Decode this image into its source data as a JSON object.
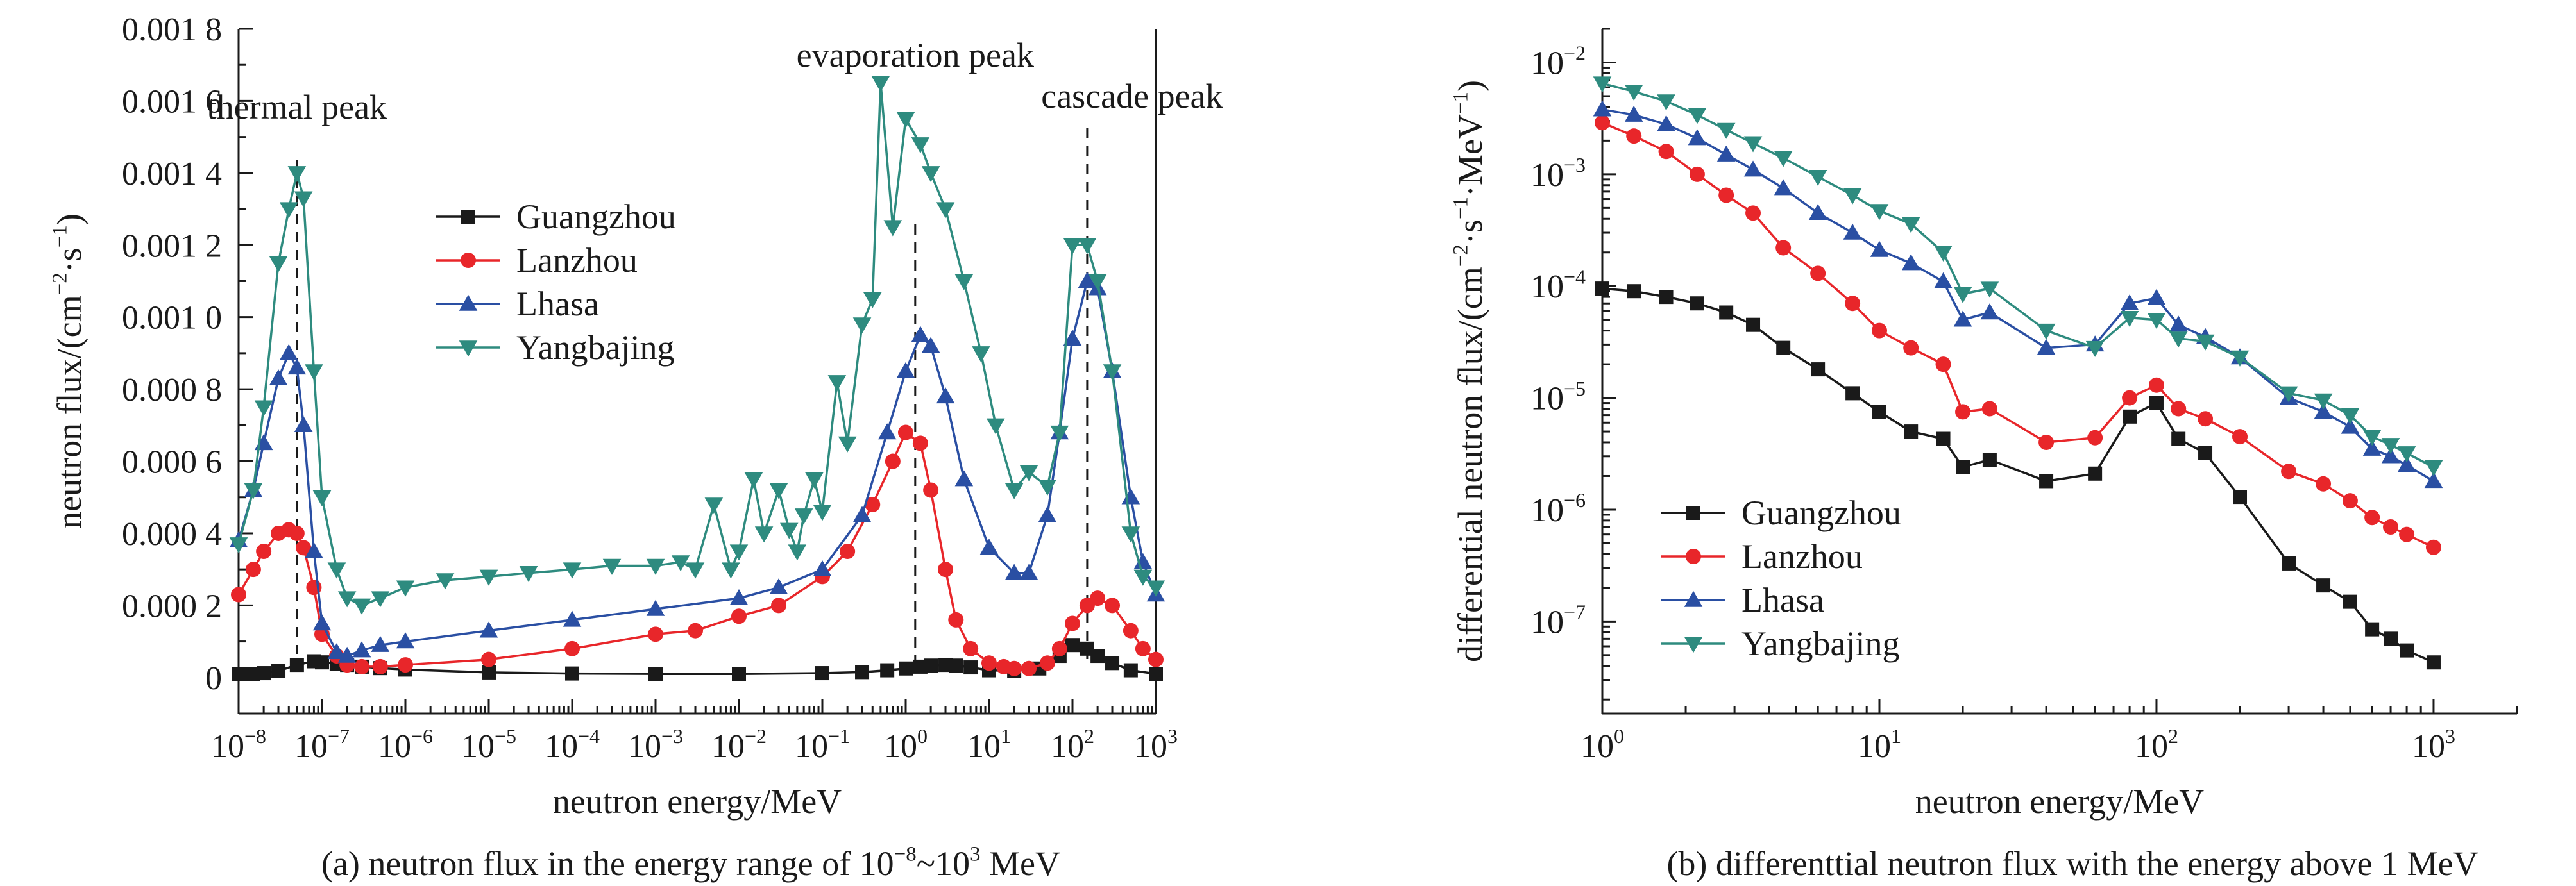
{
  "chart_data": [
    {
      "id": "a",
      "type": "line",
      "caption": {
        "prefix": "(a) neutron flux in the energy range of 10",
        "sup1": "−8",
        "mid": "~10",
        "sup2": "3",
        "suffix": " MeV"
      },
      "xlabel": "neutron energy/MeV",
      "ylabel": {
        "main": "neutron flux/(cm",
        "sup1": "−2",
        "mid": "·s",
        "sup2": "−1",
        "end": ")"
      },
      "xscale": "log",
      "xlim": [
        1e-08,
        1000
      ],
      "ylim": [
        -0.0001,
        0.0018
      ],
      "y_ticks": [
        {
          "value": 0,
          "label": "0"
        },
        {
          "value": 0.0002,
          "label": "0.000 2"
        },
        {
          "value": 0.0004,
          "label": "0.000 4"
        },
        {
          "value": 0.0006,
          "label": "0.000 6"
        },
        {
          "value": 0.0008,
          "label": "0.000 8"
        },
        {
          "value": 0.001,
          "label": "0.001 0"
        },
        {
          "value": 0.0012,
          "label": "0.001 2"
        },
        {
          "value": 0.0014,
          "label": "0.001 4"
        },
        {
          "value": 0.0016,
          "label": "0.001 6"
        },
        {
          "value": 0.0018,
          "label": "0.001 8"
        }
      ],
      "x_ticks": [
        {
          "value": 1e-08,
          "base": "10",
          "exp": "−8"
        },
        {
          "value": 1e-07,
          "base": "10",
          "exp": "−7"
        },
        {
          "value": 1e-06,
          "base": "10",
          "exp": "−6"
        },
        {
          "value": 1e-05,
          "base": "10",
          "exp": "−5"
        },
        {
          "value": 0.0001,
          "base": "10",
          "exp": "−4"
        },
        {
          "value": 0.001,
          "base": "10",
          "exp": "−3"
        },
        {
          "value": 0.01,
          "base": "10",
          "exp": "−2"
        },
        {
          "value": 0.1,
          "base": "10",
          "exp": "−1"
        },
        {
          "value": 1,
          "base": "10",
          "exp": "0"
        },
        {
          "value": 10,
          "base": "10",
          "exp": "1"
        },
        {
          "value": 100,
          "base": "10",
          "exp": "2"
        },
        {
          "value": 1000,
          "base": "10",
          "exp": "3"
        }
      ],
      "annotations": [
        {
          "text": "thermal peak",
          "x": 5e-08
        },
        {
          "text": "evaporation peak",
          "x": 1.3
        },
        {
          "text": "cascade peak",
          "x": 150
        }
      ],
      "legend": "upper-left",
      "series": [
        {
          "name": "Guangzhou",
          "color": "#1a1a1a",
          "marker": "square",
          "x": [
            1e-08,
            1.5e-08,
            2e-08,
            3e-08,
            5e-08,
            8e-08,
            1e-07,
            1.5e-07,
            2e-07,
            3e-07,
            5e-07,
            1e-06,
            1e-05,
            0.0001,
            0.001,
            0.01,
            0.1,
            0.3,
            0.6,
            1,
            1.5,
            2,
            3,
            4,
            6,
            10,
            20,
            40,
            70,
            100,
            150,
            200,
            300,
            500,
            1000
          ],
          "y": [
            1e-05,
            1e-05,
            1.2e-05,
            1.8e-05,
            3.5e-05,
            4.5e-05,
            4.2e-05,
            3.8e-05,
            3.5e-05,
            3e-05,
            2.6e-05,
            2.2e-05,
            1.4e-05,
            1.1e-05,
            1e-05,
            1e-05,
            1.2e-05,
            1.5e-05,
            2e-05,
            2.5e-05,
            3e-05,
            3.3e-05,
            3.5e-05,
            3.3e-05,
            2.8e-05,
            2e-05,
            1.8e-05,
            2.5e-05,
            6e-05,
            9e-05,
            8e-05,
            6e-05,
            4e-05,
            2e-05,
            1e-05
          ]
        },
        {
          "name": "Lanzhou",
          "color": "#e8262a",
          "marker": "circle",
          "x": [
            1e-08,
            1.5e-08,
            2e-08,
            3e-08,
            4e-08,
            5e-08,
            6e-08,
            8e-08,
            1e-07,
            1.5e-07,
            2e-07,
            3e-07,
            5e-07,
            1e-06,
            1e-05,
            0.0001,
            0.001,
            0.003,
            0.01,
            0.03,
            0.1,
            0.2,
            0.4,
            0.7,
            1,
            1.5,
            2,
            3,
            4,
            6,
            10,
            15,
            20,
            30,
            50,
            70,
            100,
            150,
            200,
            300,
            500,
            700,
            1000
          ],
          "y": [
            0.00023,
            0.0003,
            0.00035,
            0.0004,
            0.00041,
            0.0004,
            0.00036,
            0.00025,
            0.00012,
            6e-05,
            3.5e-05,
            3e-05,
            3e-05,
            3.5e-05,
            5e-05,
            8e-05,
            0.00012,
            0.00013,
            0.00017,
            0.0002,
            0.00028,
            0.00035,
            0.00048,
            0.0006,
            0.00068,
            0.00065,
            0.00052,
            0.0003,
            0.00016,
            8e-05,
            4e-05,
            3e-05,
            2.5e-05,
            2.5e-05,
            4e-05,
            8e-05,
            0.00015,
            0.0002,
            0.00022,
            0.0002,
            0.00013,
            8e-05,
            5e-05
          ]
        },
        {
          "name": "Lhasa",
          "color": "#2a4fa3",
          "marker": "triangle-up",
          "x": [
            1e-08,
            1.5e-08,
            2e-08,
            3e-08,
            4e-08,
            5e-08,
            6e-08,
            8e-08,
            1e-07,
            1.5e-07,
            2e-07,
            3e-07,
            5e-07,
            1e-06,
            1e-05,
            0.0001,
            0.001,
            0.01,
            0.03,
            0.1,
            0.3,
            0.6,
            1,
            1.5,
            2,
            3,
            5,
            10,
            20,
            30,
            50,
            70,
            100,
            150,
            200,
            300,
            500,
            700,
            1000
          ],
          "y": [
            0.00038,
            0.00052,
            0.00065,
            0.00083,
            0.0009,
            0.00086,
            0.0007,
            0.00035,
            0.00015,
            7e-05,
            6e-05,
            7.5e-05,
            9e-05,
            0.0001,
            0.00013,
            0.00016,
            0.00019,
            0.00022,
            0.00025,
            0.0003,
            0.00045,
            0.00068,
            0.00085,
            0.00095,
            0.00092,
            0.00078,
            0.00055,
            0.00036,
            0.00029,
            0.00029,
            0.00045,
            0.00068,
            0.00094,
            0.0011,
            0.00108,
            0.00085,
            0.0005,
            0.00032,
            0.00023
          ]
        },
        {
          "name": "Yangbajing",
          "color": "#2e8b7f",
          "marker": "triangle-down",
          "x": [
            1e-08,
            1.5e-08,
            2e-08,
            3e-08,
            4e-08,
            5e-08,
            6e-08,
            8e-08,
            1e-07,
            1.5e-07,
            2e-07,
            3e-07,
            5e-07,
            1e-06,
            3e-06,
            1e-05,
            3e-05,
            0.0001,
            0.0003,
            0.001,
            0.002,
            0.003,
            0.005,
            0.008,
            0.01,
            0.015,
            0.02,
            0.03,
            0.04,
            0.05,
            0.06,
            0.08,
            0.1,
            0.15,
            0.2,
            0.3,
            0.4,
            0.5,
            0.7,
            1,
            1.5,
            2,
            3,
            5,
            8,
            12,
            20,
            30,
            50,
            70,
            100,
            150,
            200,
            300,
            500,
            700,
            1000
          ],
          "y": [
            0.00037,
            0.00052,
            0.00075,
            0.00115,
            0.0013,
            0.0014,
            0.00133,
            0.00085,
            0.0005,
            0.0003,
            0.00022,
            0.0002,
            0.00022,
            0.00025,
            0.00027,
            0.00028,
            0.00029,
            0.0003,
            0.00031,
            0.00031,
            0.00032,
            0.0003,
            0.00048,
            0.0003,
            0.00035,
            0.00055,
            0.0004,
            0.00052,
            0.00041,
            0.00035,
            0.00045,
            0.00055,
            0.00046,
            0.00082,
            0.00065,
            0.00098,
            0.00105,
            0.00165,
            0.00125,
            0.00155,
            0.00148,
            0.0014,
            0.0013,
            0.0011,
            0.0009,
            0.0007,
            0.00052,
            0.00057,
            0.00053,
            0.00068,
            0.0012,
            0.0012,
            0.0011,
            0.00085,
            0.0004,
            0.00028,
            0.00025
          ]
        }
      ]
    },
    {
      "id": "b",
      "type": "line",
      "caption": {
        "text": "(b) differenttial neutron flux with the energy above 1 MeV"
      },
      "xlabel": "neutron energy/MeV",
      "ylabel": {
        "main": "differential neutron flux/(cm",
        "sup1": "−2",
        "mid": "·s",
        "sup2": "−1",
        "mid2": "·MeV",
        "sup3": "−1",
        "end": ")"
      },
      "xscale": "log",
      "yscale": "log",
      "xlim": [
        1,
        2000
      ],
      "ylim": [
        1.5e-08,
        0.02
      ],
      "x_ticks": [
        {
          "value": 1,
          "base": "10",
          "exp": "0"
        },
        {
          "value": 10,
          "base": "10",
          "exp": "1"
        },
        {
          "value": 100,
          "base": "10",
          "exp": "2"
        },
        {
          "value": 1000,
          "base": "10",
          "exp": "3"
        }
      ],
      "y_ticks": [
        {
          "value": 1e-07,
          "base": "10",
          "exp": "−7"
        },
        {
          "value": 1e-06,
          "base": "10",
          "exp": "−6"
        },
        {
          "value": 1e-05,
          "base": "10",
          "exp": "−5"
        },
        {
          "value": 0.0001,
          "base": "10",
          "exp": "−4"
        },
        {
          "value": 0.001,
          "base": "10",
          "exp": "−3"
        },
        {
          "value": 0.01,
          "base": "10",
          "exp": "−2"
        }
      ],
      "legend": "lower-left",
      "series": [
        {
          "name": "Guangzhou",
          "color": "#1a1a1a",
          "marker": "square",
          "x": [
            1,
            1.3,
            1.7,
            2.2,
            2.8,
            3.5,
            4.5,
            6,
            8,
            10,
            13,
            17,
            20,
            25,
            40,
            60,
            80,
            100,
            120,
            150,
            200,
            300,
            400,
            500,
            600,
            700,
            800,
            1000
          ],
          "y": [
            9.5e-05,
            9e-05,
            8e-05,
            7e-05,
            5.8e-05,
            4.5e-05,
            2.8e-05,
            1.8e-05,
            1.1e-05,
            7.5e-06,
            5e-06,
            4.3e-06,
            2.4e-06,
            2.8e-06,
            1.8e-06,
            2.1e-06,
            6.8e-06,
            9e-06,
            4.3e-06,
            3.2e-06,
            1.3e-06,
            3.3e-07,
            2.1e-07,
            1.5e-07,
            8.5e-08,
            7e-08,
            5.5e-08,
            4.3e-08
          ]
        },
        {
          "name": "Lanzhou",
          "color": "#e8262a",
          "marker": "circle",
          "x": [
            1,
            1.3,
            1.7,
            2.2,
            2.8,
            3.5,
            4.5,
            6,
            8,
            10,
            13,
            17,
            20,
            25,
            40,
            60,
            80,
            100,
            120,
            150,
            200,
            300,
            400,
            500,
            600,
            700,
            800,
            1000
          ],
          "y": [
            0.0029,
            0.0022,
            0.0016,
            0.001,
            0.00065,
            0.00045,
            0.00022,
            0.00013,
            7e-05,
            4e-05,
            2.8e-05,
            2e-05,
            7.5e-06,
            8e-06,
            4e-06,
            4.4e-06,
            1e-05,
            1.3e-05,
            8e-06,
            6.5e-06,
            4.5e-06,
            2.2e-06,
            1.7e-06,
            1.2e-06,
            8.5e-07,
            7e-07,
            6e-07,
            4.6e-07
          ]
        },
        {
          "name": "Lhasa",
          "color": "#2a4fa3",
          "marker": "triangle-up",
          "x": [
            1,
            1.3,
            1.7,
            2.2,
            2.8,
            3.5,
            4.5,
            6,
            8,
            10,
            13,
            17,
            20,
            25,
            40,
            60,
            80,
            100,
            120,
            150,
            200,
            300,
            400,
            500,
            600,
            700,
            800,
            1000
          ],
          "y": [
            0.0038,
            0.0034,
            0.0028,
            0.0021,
            0.0015,
            0.0011,
            0.00075,
            0.00045,
            0.0003,
            0.00021,
            0.00016,
            0.00011,
            5e-05,
            5.8e-05,
            2.8e-05,
            3e-05,
            7e-05,
            7.8e-05,
            4.5e-05,
            3.5e-05,
            2.3e-05,
            1e-05,
            7.5e-06,
            5.5e-06,
            3.5e-06,
            3e-06,
            2.5e-06,
            1.8e-06
          ]
        },
        {
          "name": "Yangbajing",
          "color": "#2e8b7f",
          "marker": "triangle-down",
          "x": [
            1,
            1.3,
            1.7,
            2.2,
            2.8,
            3.5,
            4.5,
            6,
            8,
            10,
            13,
            17,
            20,
            25,
            40,
            60,
            80,
            100,
            120,
            150,
            200,
            300,
            400,
            500,
            600,
            700,
            800,
            1000
          ],
          "y": [
            0.0065,
            0.0055,
            0.0045,
            0.0034,
            0.0025,
            0.0019,
            0.0014,
            0.00095,
            0.00065,
            0.00047,
            0.00036,
            0.0002,
            8.5e-05,
            9.5e-05,
            4e-05,
            2.8e-05,
            5.2e-05,
            5e-05,
            3.4e-05,
            3.2e-05,
            2.3e-05,
            1.1e-05,
            9.5e-06,
            7e-06,
            4.5e-06,
            3.8e-06,
            3.2e-06,
            2.4e-06
          ]
        }
      ]
    }
  ]
}
